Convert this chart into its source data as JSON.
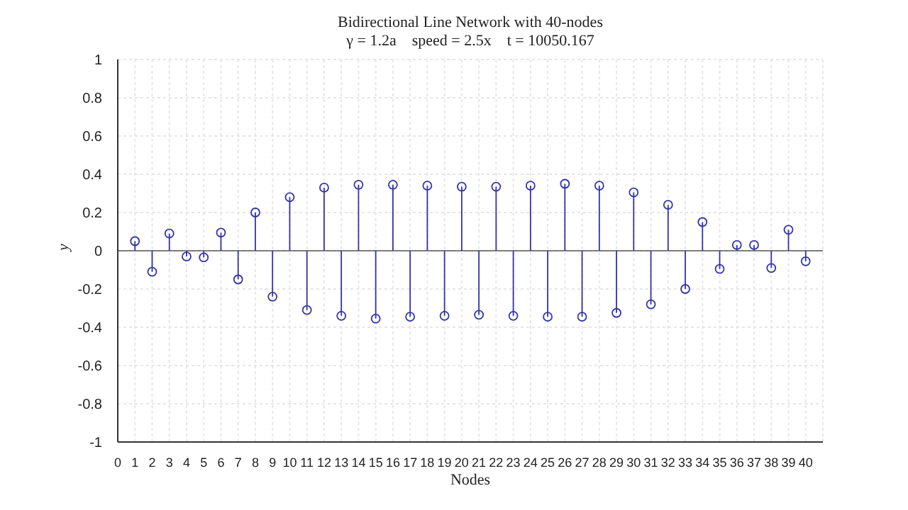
{
  "chart_data": {
    "type": "lollipop",
    "title": "Bidirectional Line Network with 40-nodes",
    "subtitle": "γ = 1.2a    speed = 2.5x    t = 10050.167",
    "xlabel": "Nodes",
    "ylabel": "y",
    "x": [
      1,
      2,
      3,
      4,
      5,
      6,
      7,
      8,
      9,
      10,
      11,
      12,
      13,
      14,
      15,
      16,
      17,
      18,
      19,
      20,
      21,
      22,
      23,
      24,
      25,
      26,
      27,
      28,
      29,
      30,
      31,
      32,
      33,
      34,
      35,
      36,
      37,
      38,
      39,
      40
    ],
    "series": [
      {
        "color": "#3333aa",
        "values": [
          0.05,
          -0.11,
          0.09,
          -0.03,
          -0.035,
          0.095,
          -0.15,
          0.2,
          -0.24,
          0.28,
          -0.31,
          0.33,
          -0.34,
          0.345,
          -0.355,
          0.345,
          -0.345,
          0.34,
          -0.34,
          0.335,
          -0.335,
          0.335,
          -0.34,
          0.34,
          -0.345,
          0.35,
          -0.345,
          0.34,
          -0.325,
          0.305,
          -0.28,
          0.24,
          -0.2,
          0.15,
          -0.095,
          0.03,
          0.03,
          -0.09,
          0.11,
          -0.055
        ]
      }
    ],
    "xlim": [
      0,
      41
    ],
    "xticks": [
      0,
      1,
      2,
      3,
      4,
      5,
      6,
      7,
      8,
      9,
      10,
      11,
      12,
      13,
      14,
      15,
      16,
      17,
      18,
      19,
      20,
      21,
      22,
      23,
      24,
      25,
      26,
      27,
      28,
      29,
      30,
      31,
      32,
      33,
      34,
      35,
      36,
      37,
      38,
      39,
      40
    ],
    "ylim": [
      -1,
      1
    ],
    "yticks": [
      -1,
      -0.8,
      -0.6,
      -0.4,
      -0.2,
      0,
      0.2,
      0.4,
      0.6,
      0.8,
      1
    ],
    "grid": true,
    "marker": "circle"
  }
}
